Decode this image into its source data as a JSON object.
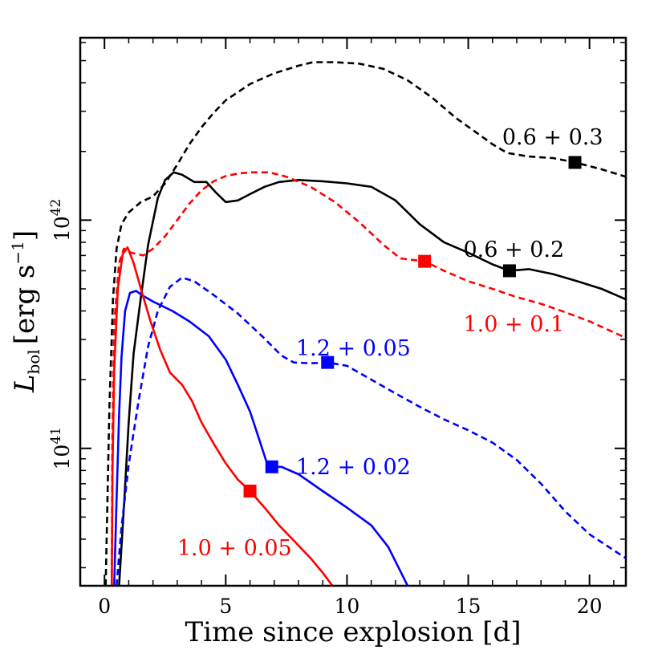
{
  "chart_data": {
    "type": "line",
    "xlabel": "Time since explosion [d]",
    "ylabel_main": "L",
    "ylabel_sub": "bol",
    "ylabel_unit": "[erg s",
    "ylabel_unit_sup": "−1",
    "ylabel_unit_close": "]",
    "yscale": "log",
    "xlim": [
      -1,
      21.5
    ],
    "ylim": [
      2.5e+40,
      6.3e+42
    ],
    "xticks": [
      0,
      5,
      10,
      15,
      20
    ],
    "xtick_labels": [
      "0",
      "5",
      "10",
      "15",
      "20"
    ],
    "yticks": [
      {
        "value": 1e+41,
        "base": "10",
        "exp": "41"
      },
      {
        "value": 1e+42,
        "base": "10",
        "exp": "42"
      }
    ],
    "grid": false,
    "series": [
      {
        "label": "0.6 + 0.3",
        "color": "#000000",
        "dash": true,
        "marker": {
          "x": 19.4,
          "y": 1.79e+42
        },
        "label_pos": {
          "x": 16.4,
          "y": 2.15e+42
        },
        "points": [
          [
            0.05,
            2.5e+40
          ],
          [
            0.2,
            1.5e+41
          ],
          [
            0.35,
            4.5e+41
          ],
          [
            0.5,
            7.5e+41
          ],
          [
            0.7,
            9.6e+41
          ],
          [
            1.0,
            1.08e+42
          ],
          [
            1.5,
            1.2e+42
          ],
          [
            2.0,
            1.27e+42
          ],
          [
            2.5,
            1.45e+42
          ],
          [
            3.0,
            1.75e+42
          ],
          [
            3.5,
            2.15e+42
          ],
          [
            4.0,
            2.55e+42
          ],
          [
            4.5,
            2.95e+42
          ],
          [
            5.0,
            3.35e+42
          ],
          [
            6.0,
            3.95e+42
          ],
          [
            7.0,
            4.4e+42
          ],
          [
            8.0,
            4.75e+42
          ],
          [
            8.6,
            4.92e+42
          ],
          [
            9.5,
            4.92e+42
          ],
          [
            10.5,
            4.85e+42
          ],
          [
            11.5,
            4.6e+42
          ],
          [
            12.5,
            4.1e+42
          ],
          [
            13.5,
            3.45e+42
          ],
          [
            14.5,
            2.8e+42
          ],
          [
            15.5,
            2.35e+42
          ],
          [
            16.0,
            2.15e+42
          ],
          [
            16.6,
            1.97e+42
          ],
          [
            17.5,
            1.9e+42
          ],
          [
            18.5,
            1.87e+42
          ],
          [
            19.4,
            1.79e+42
          ],
          [
            20.5,
            1.67e+42
          ],
          [
            21.5,
            1.55e+42
          ]
        ]
      },
      {
        "label": "0.6 + 0.2",
        "color": "#000000",
        "dash": false,
        "marker": {
          "x": 16.7,
          "y": 6e+41
        },
        "label_pos": {
          "x": 14.8,
          "y": 6.9e+41
        },
        "points": [
          [
            0.6,
            2.5e+40
          ],
          [
            0.8,
            5.5e+40
          ],
          [
            1.0,
            1.3e+41
          ],
          [
            1.2,
            2.6e+41
          ],
          [
            1.5,
            4.6e+41
          ],
          [
            1.8,
            7.8e+41
          ],
          [
            2.2,
            1.25e+42
          ],
          [
            2.5,
            1.5e+42
          ],
          [
            2.85,
            1.62e+42
          ],
          [
            3.2,
            1.58e+42
          ],
          [
            3.7,
            1.47e+42
          ],
          [
            4.2,
            1.47e+42
          ],
          [
            4.6,
            1.32e+42
          ],
          [
            5.0,
            1.2e+42
          ],
          [
            5.5,
            1.22e+42
          ],
          [
            6.0,
            1.3e+42
          ],
          [
            6.6,
            1.4e+42
          ],
          [
            7.2,
            1.47e+42
          ],
          [
            8.0,
            1.5e+42
          ],
          [
            9.0,
            1.48e+42
          ],
          [
            10.0,
            1.45e+42
          ],
          [
            11.0,
            1.4e+42
          ],
          [
            12.0,
            1.22e+42
          ],
          [
            13.0,
            9.6e+41
          ],
          [
            14.0,
            8e+41
          ],
          [
            15.0,
            7.2e+41
          ],
          [
            16.0,
            6.4e+41
          ],
          [
            16.7,
            6e+41
          ],
          [
            17.5,
            6.1e+41
          ],
          [
            18.5,
            5.8e+41
          ],
          [
            19.5,
            5.4e+41
          ],
          [
            20.5,
            5e+41
          ],
          [
            21.5,
            4.5e+41
          ]
        ]
      },
      {
        "label": "1.0 + 0.1",
        "color": "#ff0000",
        "dash": true,
        "marker": {
          "x": 13.2,
          "y": 6.6e+41
        },
        "label_pos": {
          "x": 14.8,
          "y": 3.25e+41
        },
        "points": [
          [
            0.3,
            2.5e+40
          ],
          [
            0.32,
            1e+41
          ],
          [
            0.4,
            3.5e+41
          ],
          [
            0.6,
            6.5e+41
          ],
          [
            0.8,
            7.5e+41
          ],
          [
            1.1,
            7.2e+41
          ],
          [
            1.6,
            7e+41
          ],
          [
            2.0,
            7.5e+41
          ],
          [
            2.5,
            8.5e+41
          ],
          [
            3.0,
            1e+42
          ],
          [
            3.5,
            1.18e+42
          ],
          [
            4.0,
            1.35e+42
          ],
          [
            4.5,
            1.48e+42
          ],
          [
            5.0,
            1.56e+42
          ],
          [
            5.5,
            1.6e+42
          ],
          [
            6.0,
            1.62e+42
          ],
          [
            6.8,
            1.62e+42
          ],
          [
            7.5,
            1.55e+42
          ],
          [
            8.5,
            1.4e+42
          ],
          [
            9.5,
            1.2e+42
          ],
          [
            10.5,
            9.8e+41
          ],
          [
            11.5,
            7.8e+41
          ],
          [
            12.2,
            6.8e+41
          ],
          [
            13.2,
            6.6e+41
          ],
          [
            14.0,
            6e+41
          ],
          [
            15.0,
            5.4e+41
          ],
          [
            16.0,
            5e+41
          ],
          [
            17.0,
            4.6e+41
          ],
          [
            18.0,
            4.3e+41
          ],
          [
            19.0,
            3.95e+41
          ],
          [
            20.0,
            3.6e+41
          ],
          [
            21.5,
            3.05e+41
          ]
        ]
      },
      {
        "label": "1.2 + 0.05",
        "color": "#0000ff",
        "dash": true,
        "marker": {
          "x": 9.2,
          "y": 2.38e+41
        },
        "label_pos": {
          "x": 7.9,
          "y": 2.55e+41
        },
        "points": [
          [
            0.5,
            2.5e+40
          ],
          [
            0.7,
            4.5e+40
          ],
          [
            1.0,
            8.5e+40
          ],
          [
            1.4,
            1.6e+41
          ],
          [
            1.8,
            2.8e+41
          ],
          [
            2.2,
            4e+41
          ],
          [
            2.7,
            5.1e+41
          ],
          [
            3.2,
            5.6e+41
          ],
          [
            3.7,
            5.4e+41
          ],
          [
            4.5,
            4.7e+41
          ],
          [
            5.5,
            3.9e+41
          ],
          [
            6.5,
            3.1e+41
          ],
          [
            7.3,
            2.55e+41
          ],
          [
            7.8,
            2.38e+41
          ],
          [
            8.5,
            2.36e+41
          ],
          [
            9.2,
            2.38e+41
          ],
          [
            10.0,
            2.3e+41
          ],
          [
            11.0,
            2e+41
          ],
          [
            12.0,
            1.74e+41
          ],
          [
            13.0,
            1.52e+41
          ],
          [
            14.0,
            1.34e+41
          ],
          [
            15.0,
            1.2e+41
          ],
          [
            16.0,
            1.06e+41
          ],
          [
            17.0,
            8.9e+40
          ],
          [
            18.0,
            7e+40
          ],
          [
            19.0,
            5.3e+40
          ],
          [
            20.0,
            4.2e+40
          ],
          [
            21.5,
            3.3e+40
          ]
        ]
      },
      {
        "label": "1.2 + 0.02",
        "color": "#0000ff",
        "dash": false,
        "marker": {
          "x": 6.9,
          "y": 8.3e+40
        },
        "label_pos": {
          "x": 7.9,
          "y": 7.7e+40
        },
        "points": [
          [
            0.4,
            2.5e+40
          ],
          [
            0.5,
            6e+40
          ],
          [
            0.6,
            1.4e+41
          ],
          [
            0.7,
            2.5e+41
          ],
          [
            0.85,
            4e+41
          ],
          [
            1.05,
            4.8e+41
          ],
          [
            1.3,
            4.9e+41
          ],
          [
            1.6,
            4.65e+41
          ],
          [
            2.0,
            4.4e+41
          ],
          [
            2.8,
            4e+41
          ],
          [
            3.5,
            3.6e+41
          ],
          [
            4.3,
            3.1e+41
          ],
          [
            5.0,
            2.45e+41
          ],
          [
            5.5,
            1.9e+41
          ],
          [
            6.0,
            1.45e+41
          ],
          [
            6.4,
            1.08e+41
          ],
          [
            6.7,
            8.6e+40
          ],
          [
            6.9,
            8.3e+40
          ],
          [
            7.3,
            8.3e+40
          ],
          [
            8.0,
            7.7e+40
          ],
          [
            9.0,
            6.5e+40
          ],
          [
            10.0,
            5.5e+40
          ],
          [
            11.0,
            4.6e+40
          ],
          [
            11.7,
            3.7e+40
          ],
          [
            12.2,
            2.9e+40
          ],
          [
            12.5,
            2.5e+40
          ]
        ]
      },
      {
        "label": "1.0 + 0.05",
        "color": "#ff0000",
        "dash": false,
        "marker": {
          "x": 6.0,
          "y": 6.5e+40
        },
        "label_pos": {
          "x": 3.0,
          "y": 3.4e+40
        },
        "points": [
          [
            0.3,
            2.5e+40
          ],
          [
            0.33,
            8e+40
          ],
          [
            0.4,
            2.2e+41
          ],
          [
            0.55,
            5e+41
          ],
          [
            0.75,
            7.1e+41
          ],
          [
            0.95,
            7.6e+41
          ],
          [
            1.2,
            6.5e+41
          ],
          [
            1.5,
            5e+41
          ],
          [
            1.9,
            3.6e+41
          ],
          [
            2.3,
            2.7e+41
          ],
          [
            2.7,
            2.15e+41
          ],
          [
            3.2,
            1.9e+41
          ],
          [
            3.6,
            1.62e+41
          ],
          [
            4.0,
            1.3e+41
          ],
          [
            4.5,
            1.05e+41
          ],
          [
            5.0,
            8.6e+40
          ],
          [
            5.5,
            7.3e+40
          ],
          [
            6.0,
            6.5e+40
          ],
          [
            6.6,
            5.5e+40
          ],
          [
            7.2,
            4.6e+40
          ],
          [
            7.8,
            3.95e+40
          ],
          [
            8.5,
            3.3e+40
          ],
          [
            9.0,
            2.85e+40
          ],
          [
            9.4,
            2.5e+40
          ]
        ]
      }
    ]
  }
}
